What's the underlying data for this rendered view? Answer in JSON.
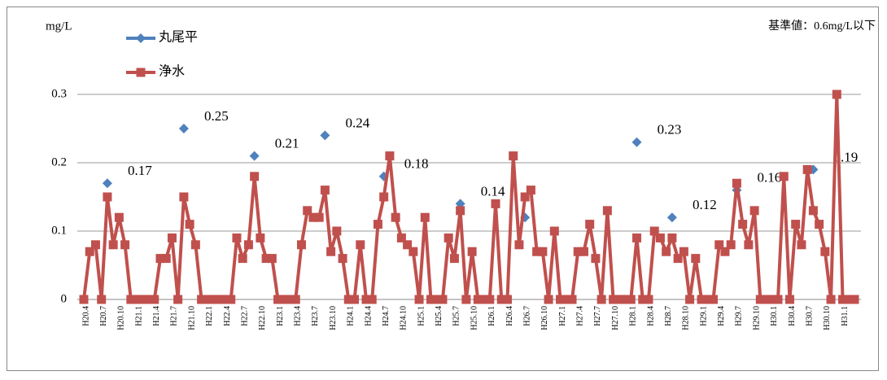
{
  "chart_data": {
    "type": "line",
    "y_label": "mg/L",
    "annotation": "基準値：0.6mg/L以下",
    "categories": [
      "H20.4",
      null,
      null,
      "H20.7",
      null,
      null,
      "H20.10",
      null,
      null,
      "H21.1",
      null,
      null,
      "H21.4",
      null,
      null,
      "H21.7",
      null,
      null,
      "H21.10",
      null,
      null,
      "H22.1",
      null,
      null,
      "H22.4",
      null,
      null,
      "H22.7",
      null,
      null,
      "H22.10",
      null,
      null,
      "H23.1",
      null,
      null,
      "H23.4",
      null,
      null,
      "H23.7",
      null,
      null,
      "H23.10",
      null,
      null,
      "H24.1",
      null,
      null,
      "H24.4",
      null,
      null,
      "H24.7",
      null,
      null,
      "H24.10",
      null,
      null,
      "H25.1",
      null,
      null,
      "H25.4",
      null,
      null,
      "H25.7",
      null,
      null,
      "H25.10",
      null,
      null,
      "H26.1",
      null,
      null,
      "H26.4",
      null,
      null,
      "H26.7",
      null,
      null,
      "H26.10",
      null,
      null,
      "H27.1",
      null,
      null,
      "H27.4",
      null,
      null,
      "H27.7",
      null,
      null,
      "H27.10",
      null,
      null,
      "H28.1",
      null,
      null,
      "H28.4",
      null,
      null,
      "H28.7",
      null,
      null,
      "H28.10",
      null,
      null,
      "H29.1",
      null,
      null,
      "H29.4",
      null,
      null,
      "H29.7",
      null,
      null,
      "H29.10",
      null,
      null,
      "H30.1",
      null,
      null,
      "H30.4",
      null,
      null,
      "H30.7",
      null,
      null,
      "H30.10",
      null,
      null,
      "H31.1",
      null,
      null
    ],
    "series": [
      {
        "name": "丸尾平",
        "color": "#4f81bd",
        "marker": "diamond",
        "show_line": false,
        "values": [
          null,
          null,
          null,
          null,
          0.17,
          null,
          null,
          null,
          null,
          null,
          null,
          null,
          null,
          null,
          null,
          null,
          null,
          0.25,
          null,
          null,
          null,
          null,
          null,
          null,
          null,
          null,
          null,
          null,
          null,
          0.21,
          null,
          null,
          null,
          null,
          null,
          null,
          null,
          null,
          null,
          null,
          null,
          0.24,
          null,
          null,
          null,
          null,
          null,
          null,
          null,
          null,
          null,
          0.18,
          null,
          null,
          null,
          null,
          null,
          null,
          null,
          null,
          null,
          null,
          null,
          null,
          0.14,
          null,
          null,
          null,
          null,
          null,
          null,
          null,
          null,
          null,
          null,
          0.12,
          null,
          null,
          null,
          null,
          null,
          null,
          null,
          null,
          null,
          null,
          null,
          null,
          null,
          null,
          null,
          null,
          null,
          null,
          0.23,
          null,
          null,
          null,
          null,
          null,
          0.12,
          null,
          null,
          null,
          null,
          null,
          null,
          null,
          null,
          null,
          null,
          0.16,
          null,
          null,
          null,
          null,
          null,
          null,
          null,
          null,
          null,
          null,
          null,
          null,
          0.19,
          null,
          null,
          null,
          null,
          null,
          null,
          null
        ],
        "value_labels": [
          null,
          null,
          null,
          null,
          "0.17",
          null,
          null,
          null,
          null,
          null,
          null,
          null,
          null,
          null,
          null,
          null,
          null,
          "0.25",
          null,
          null,
          null,
          null,
          null,
          null,
          null,
          null,
          null,
          null,
          null,
          "0.21",
          null,
          null,
          null,
          null,
          null,
          null,
          null,
          null,
          null,
          null,
          null,
          "0.24",
          null,
          null,
          null,
          null,
          null,
          null,
          null,
          null,
          null,
          "0.18",
          null,
          null,
          null,
          null,
          null,
          null,
          null,
          null,
          null,
          null,
          null,
          null,
          "0.14",
          null,
          null,
          null,
          null,
          null,
          null,
          null,
          null,
          null,
          null,
          null,
          null,
          null,
          null,
          null,
          null,
          null,
          null,
          null,
          null,
          null,
          null,
          null,
          null,
          null,
          null,
          null,
          null,
          null,
          "0.23",
          null,
          null,
          null,
          null,
          null,
          "0.12",
          null,
          null,
          null,
          null,
          null,
          null,
          null,
          null,
          null,
          null,
          "0.16",
          null,
          null,
          null,
          null,
          null,
          null,
          null,
          null,
          null,
          null,
          null,
          null,
          "0.19",
          null,
          null,
          null,
          null,
          null,
          null,
          null
        ]
      },
      {
        "name": "浄水",
        "color": "#c0504d",
        "marker": "square",
        "show_line": true,
        "values": [
          0,
          0.07,
          0.08,
          0,
          0.15,
          0.08,
          0.12,
          0.08,
          0,
          0,
          0,
          0,
          0,
          0.06,
          0.06,
          0.09,
          0,
          0.15,
          0.11,
          0.08,
          0,
          0,
          0,
          0,
          0,
          0,
          0.09,
          0.06,
          0.08,
          0.18,
          0.09,
          0.06,
          0.06,
          0,
          0,
          0,
          0,
          0.08,
          0.13,
          0.12,
          0.12,
          0.16,
          0.07,
          0.1,
          0.06,
          0,
          0,
          0.08,
          0,
          0,
          0.11,
          0.15,
          0.21,
          0.12,
          0.09,
          0.08,
          0.07,
          0,
          0.12,
          0,
          0,
          0,
          0.09,
          0.06,
          0.13,
          0,
          0.07,
          0,
          0,
          0,
          0.14,
          0,
          0,
          0.21,
          0.08,
          0.15,
          0.16,
          0.07,
          0.07,
          0,
          0.1,
          0,
          0,
          0,
          0.07,
          0.07,
          0.11,
          0.06,
          0,
          0.13,
          0,
          0,
          0,
          0,
          0.09,
          0,
          0,
          0.1,
          0.09,
          0.07,
          0.09,
          0.06,
          0.07,
          0,
          0.06,
          0,
          0,
          0,
          0.08,
          0.07,
          0.08,
          0.17,
          0.11,
          0.08,
          0.13,
          0,
          0,
          0,
          0,
          0.18,
          0,
          0.11,
          0.08,
          0.19,
          0.13,
          0.11,
          0.07,
          0,
          0.3,
          0,
          0,
          0
        ]
      }
    ],
    "ylim": [
      0,
      0.35
    ],
    "yticks": [
      0,
      0.1,
      0.2,
      0.3
    ],
    "grid": true,
    "legend": "top-left"
  }
}
